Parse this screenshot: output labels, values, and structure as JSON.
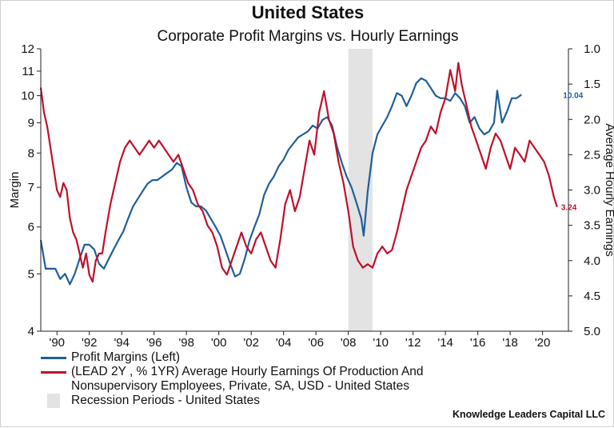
{
  "title": "United States",
  "subtitle": "Corporate Profit Margins vs. Hourly Earnings",
  "footer": "Knowledge Leaders Capital LLC",
  "colors": {
    "margin": "#1f5f99",
    "earnings": "#c0102a",
    "recession": "#e3e3e3"
  },
  "legend": {
    "margin": "Profit Margins (Left)",
    "earnings_line1": "(LEAD 2Y , % 1YR) Average Hourly Earnings Of Production And",
    "earnings_line2": "Nonsupervisory Employees, Private, SA, USD - United States",
    "recession": "Recession Periods - United States"
  },
  "chart_data": {
    "type": "line",
    "ylabel": "Margin",
    "y2label": "Average Hourly Earnings",
    "ylim": [
      4,
      12
    ],
    "yscale": "log",
    "y2lim": [
      1.0,
      5.0
    ],
    "y2inverted": true,
    "xlim": [
      1989.0,
      2021.6
    ],
    "x_ticks": [
      1990,
      1992,
      1994,
      1996,
      1998,
      2000,
      2002,
      2004,
      2006,
      2008,
      2010,
      2012,
      2014,
      2016,
      2018,
      2020
    ],
    "x_tick_labels": [
      "'90",
      "'92",
      "'94",
      "'96",
      "'98",
      "'00",
      "'02",
      "'04",
      "'06",
      "'08",
      "'10",
      "'12",
      "'14",
      "'16",
      "'18",
      "'20"
    ],
    "y_ticks": [
      4,
      5,
      6,
      7,
      8,
      9,
      10,
      11,
      12
    ],
    "y2_ticks": [
      "1.0",
      "1.5",
      "2.0",
      "2.5",
      "3.0",
      "3.5",
      "4.0",
      "4.5",
      "5.0"
    ],
    "grid": false,
    "recession_periods": [
      [
        2008.0,
        2009.5
      ]
    ],
    "series": [
      {
        "name": "Profit Margins (Left)",
        "axis": "left",
        "end_label": "10.04",
        "x": [
          1989.0,
          1989.3,
          1989.6,
          1989.9,
          1990.2,
          1990.5,
          1990.8,
          1991.1,
          1991.4,
          1991.7,
          1992.0,
          1992.3,
          1992.6,
          1992.9,
          1993.2,
          1993.5,
          1993.8,
          1994.1,
          1994.4,
          1994.7,
          1995.0,
          1995.3,
          1995.6,
          1995.9,
          1996.2,
          1996.5,
          1996.8,
          1997.1,
          1997.4,
          1997.7,
          1998.0,
          1998.3,
          1998.6,
          1998.9,
          1999.2,
          1999.5,
          1999.8,
          2000.1,
          2000.4,
          2000.7,
          2001.0,
          2001.3,
          2001.6,
          2001.9,
          2002.2,
          2002.5,
          2002.8,
          2003.1,
          2003.4,
          2003.7,
          2004.0,
          2004.3,
          2004.6,
          2004.9,
          2005.2,
          2005.5,
          2005.8,
          2006.1,
          2006.4,
          2006.7,
          2007.0,
          2007.3,
          2007.6,
          2007.9,
          2008.2,
          2008.5,
          2008.8,
          2008.95,
          2009.2,
          2009.5,
          2009.8,
          2010.1,
          2010.4,
          2010.7,
          2011.0,
          2011.3,
          2011.6,
          2011.9,
          2012.2,
          2012.5,
          2012.8,
          2013.1,
          2013.4,
          2013.7,
          2014.0,
          2014.3,
          2014.6,
          2014.9,
          2015.2,
          2015.5,
          2015.8,
          2016.1,
          2016.4,
          2016.7,
          2017.0,
          2017.2,
          2017.5,
          2017.8,
          2018.1,
          2018.4,
          2018.7
        ],
        "y": [
          5.7,
          5.1,
          5.1,
          5.1,
          4.9,
          5.0,
          4.8,
          5.0,
          5.3,
          5.6,
          5.6,
          5.5,
          5.2,
          5.1,
          5.3,
          5.5,
          5.7,
          5.9,
          6.2,
          6.5,
          6.7,
          6.9,
          7.1,
          7.2,
          7.2,
          7.3,
          7.4,
          7.5,
          7.7,
          7.6,
          7.0,
          6.6,
          6.5,
          6.5,
          6.4,
          6.2,
          6.0,
          5.8,
          5.5,
          5.2,
          4.95,
          5.0,
          5.3,
          5.7,
          6.0,
          6.3,
          6.8,
          7.1,
          7.3,
          7.6,
          7.8,
          8.1,
          8.3,
          8.5,
          8.6,
          8.7,
          8.9,
          8.8,
          9.1,
          9.2,
          8.9,
          8.2,
          7.7,
          7.3,
          7.0,
          6.6,
          6.2,
          5.8,
          6.9,
          8.0,
          8.6,
          8.9,
          9.2,
          9.6,
          10.1,
          10.0,
          9.6,
          10.0,
          10.5,
          10.7,
          10.6,
          10.3,
          10.0,
          9.9,
          9.9,
          9.8,
          10.1,
          9.9,
          9.6,
          9.0,
          9.2,
          8.8,
          8.6,
          8.7,
          9.0,
          10.2,
          9.0,
          9.4,
          9.9,
          9.9,
          10.04
        ]
      },
      {
        "name": "(LEAD 2Y , % 1YR) Average Hourly Earnings Of Production And Nonsupervisory Employees, Private, SA, USD - United States",
        "axis": "right",
        "end_label": "3.24",
        "x": [
          1989.0,
          1989.2,
          1989.4,
          1989.6,
          1989.8,
          1990.0,
          1990.2,
          1990.4,
          1990.6,
          1990.8,
          1991.0,
          1991.2,
          1991.4,
          1991.6,
          1991.8,
          1992.0,
          1992.2,
          1992.4,
          1992.6,
          1992.8,
          1993.0,
          1993.3,
          1993.6,
          1993.9,
          1994.2,
          1994.5,
          1994.8,
          1995.1,
          1995.4,
          1995.7,
          1996.0,
          1996.3,
          1996.6,
          1996.9,
          1997.2,
          1997.5,
          1997.8,
          1998.1,
          1998.4,
          1998.7,
          1999.0,
          1999.3,
          1999.6,
          1999.9,
          2000.2,
          2000.5,
          2000.8,
          2001.1,
          2001.4,
          2001.7,
          2002.0,
          2002.3,
          2002.6,
          2002.9,
          2003.2,
          2003.5,
          2003.8,
          2004.1,
          2004.4,
          2004.7,
          2005.0,
          2005.3,
          2005.6,
          2005.9,
          2006.2,
          2006.5,
          2006.8,
          2007.1,
          2007.4,
          2007.7,
          2008.0,
          2008.3,
          2008.6,
          2008.9,
          2009.2,
          2009.5,
          2009.8,
          2010.1,
          2010.4,
          2010.7,
          2011.0,
          2011.3,
          2011.6,
          2011.9,
          2012.2,
          2012.5,
          2012.8,
          2013.1,
          2013.4,
          2013.7,
          2014.0,
          2014.3,
          2014.6,
          2014.8,
          2015.0,
          2015.3,
          2015.6,
          2015.9,
          2016.2,
          2016.5,
          2016.8,
          2017.1,
          2017.4,
          2017.7,
          2018.0,
          2018.3,
          2018.6,
          2018.9,
          2019.2,
          2019.5,
          2019.8,
          2020.1,
          2020.4,
          2020.7,
          2020.9
        ],
        "y": [
          1.55,
          1.9,
          2.1,
          2.4,
          2.7,
          3.0,
          3.1,
          2.9,
          3.0,
          3.4,
          3.6,
          3.7,
          3.9,
          4.1,
          3.9,
          4.2,
          4.3,
          4.0,
          3.9,
          3.9,
          3.6,
          3.2,
          2.9,
          2.6,
          2.4,
          2.3,
          2.4,
          2.5,
          2.4,
          2.3,
          2.4,
          2.3,
          2.4,
          2.5,
          2.6,
          2.5,
          2.7,
          2.9,
          3.0,
          3.2,
          3.3,
          3.5,
          3.6,
          3.8,
          4.1,
          4.2,
          4.0,
          3.8,
          3.6,
          3.8,
          3.9,
          3.7,
          3.6,
          3.8,
          4.0,
          4.1,
          3.7,
          3.2,
          3.0,
          3.3,
          3.1,
          2.7,
          2.3,
          2.5,
          1.9,
          1.6,
          2.0,
          2.2,
          2.6,
          2.9,
          3.3,
          3.8,
          4.0,
          4.1,
          4.05,
          4.1,
          3.9,
          3.8,
          3.9,
          3.85,
          3.6,
          3.3,
          3.0,
          2.8,
          2.6,
          2.4,
          2.3,
          2.1,
          2.2,
          1.9,
          1.7,
          1.3,
          1.6,
          1.2,
          1.5,
          1.8,
          2.1,
          2.3,
          2.5,
          2.7,
          2.4,
          2.2,
          2.3,
          2.5,
          2.7,
          2.4,
          2.5,
          2.6,
          2.3,
          2.4,
          2.5,
          2.6,
          2.8,
          3.1,
          3.24
        ]
      }
    ]
  }
}
